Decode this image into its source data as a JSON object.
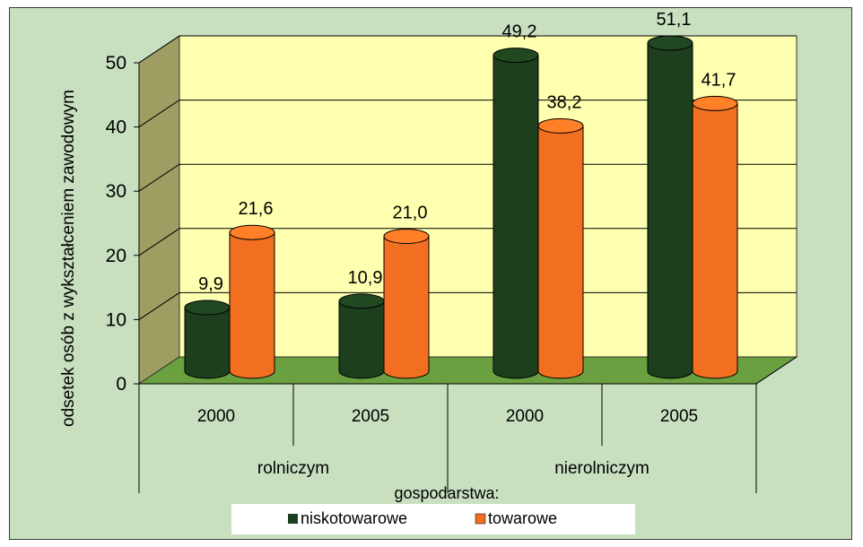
{
  "chart_data": {
    "type": "bar",
    "categories": [
      "2000",
      "2005",
      "2000",
      "2005"
    ],
    "groups": [
      {
        "label": "rolniczym",
        "categories": [
          "2000",
          "2005"
        ]
      },
      {
        "label": "nierolniczym",
        "categories": [
          "2000",
          "2005"
        ]
      }
    ],
    "group_axis_title": "gospodarstwa:",
    "series": [
      {
        "name": "niskotowarowe",
        "color": "#1e3f1e",
        "values": [
          9.9,
          10.9,
          49.2,
          51.1
        ],
        "labels": [
          "9,9",
          "10,9",
          "49,2",
          "51,1"
        ]
      },
      {
        "name": "towarowe",
        "color": "#f26f22",
        "values": [
          21.6,
          21.0,
          38.2,
          41.7
        ],
        "labels": [
          "21,6",
          "21,0",
          "38,2",
          "41,7"
        ]
      }
    ],
    "ylabel": "odsetek osób z wykształceniem zawodowym",
    "ylim": [
      0,
      50
    ],
    "yticks": [
      0,
      10,
      20,
      30,
      40,
      50
    ],
    "grid": true,
    "legend_position": "bottom",
    "style": "3d-cylinder",
    "wall_color": "#ffffb0",
    "floor_color": "#6aa040",
    "background_color": "#c8e0c0"
  }
}
